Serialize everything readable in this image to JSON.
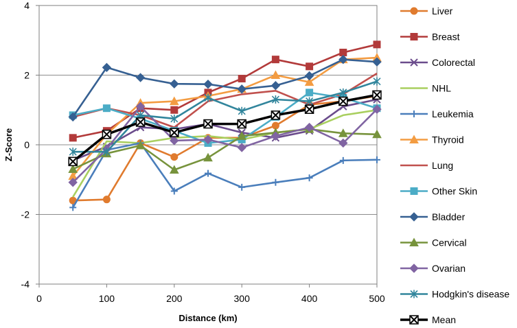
{
  "chart_data": {
    "type": "line",
    "title": "",
    "xlabel": "Distance (km)",
    "ylabel": "Z-Score",
    "xlim": [
      0,
      500
    ],
    "ylim": [
      -4,
      4
    ],
    "x_ticks": [
      0,
      100,
      200,
      300,
      400,
      500
    ],
    "y_ticks": [
      -4,
      -2,
      0,
      2,
      4
    ],
    "x": [
      50,
      100,
      150,
      200,
      250,
      300,
      350,
      400,
      450,
      500
    ],
    "grid": "horizontal",
    "legend_position": "right",
    "series": [
      {
        "name": "Liver",
        "color": "#E07B2E",
        "marker": "circle",
        "values": [
          -1.6,
          -1.57,
          0.05,
          -0.35,
          0.2,
          0.2,
          0.55,
          1.15,
          1.25,
          1.4
        ]
      },
      {
        "name": "Breast",
        "color": "#B23A3A",
        "marker": "square",
        "values": [
          0.2,
          0.4,
          1.05,
          1.0,
          1.5,
          1.9,
          2.45,
          2.25,
          2.65,
          2.88
        ]
      },
      {
        "name": "Colorectal",
        "color": "#6B4C8C",
        "marker": "x",
        "values": [
          -0.45,
          -0.05,
          0.5,
          0.45,
          0.6,
          0.35,
          0.2,
          0.4,
          1.1,
          1.3
        ]
      },
      {
        "name": "NHL",
        "color": "#A9CF5F",
        "marker": "none",
        "values": [
          -1.5,
          0.1,
          0.05,
          0.2,
          0.25,
          0.15,
          0.35,
          0.45,
          0.85,
          1.0
        ]
      },
      {
        "name": "Leukemia",
        "color": "#4A7EBB",
        "marker": "plus",
        "values": [
          -1.8,
          -0.15,
          0.05,
          -1.33,
          -0.82,
          -1.22,
          -1.08,
          -0.95,
          -0.45,
          -0.43
        ]
      },
      {
        "name": "Thyroid",
        "color": "#F39C42",
        "marker": "triangle",
        "values": [
          -0.9,
          0.3,
          1.2,
          1.25,
          1.4,
          1.6,
          2.0,
          1.8,
          2.45,
          2.5
        ]
      },
      {
        "name": "Lung",
        "color": "#C0504D",
        "marker": "none",
        "values": [
          0.8,
          1.05,
          0.85,
          0.5,
          1.25,
          1.45,
          1.55,
          1.15,
          1.45,
          2.05
        ]
      },
      {
        "name": "Other Skin",
        "color": "#4BACC6",
        "marker": "square",
        "values": [
          0.85,
          1.05,
          0.75,
          0.4,
          0.05,
          0.15,
          0.8,
          1.5,
          1.35,
          1.05
        ]
      },
      {
        "name": "Bladder",
        "color": "#366092",
        "marker": "diamond",
        "values": [
          0.8,
          2.22,
          1.93,
          1.75,
          1.74,
          1.6,
          1.7,
          1.98,
          2.45,
          2.38
        ]
      },
      {
        "name": "Cervical",
        "color": "#77933C",
        "marker": "triangle",
        "values": [
          -0.7,
          -0.25,
          -0.02,
          -0.72,
          -0.37,
          0.25,
          0.35,
          0.45,
          0.33,
          0.3
        ]
      },
      {
        "name": "Ovarian",
        "color": "#8064A2",
        "marker": "diamond",
        "values": [
          -1.08,
          -0.12,
          1.1,
          0.12,
          0.15,
          -0.08,
          0.25,
          0.5,
          0.05,
          1.02
        ]
      },
      {
        "name": "Hodgkin's disease",
        "color": "#31859C",
        "marker": "asterisk",
        "values": [
          -0.2,
          -0.2,
          0.85,
          0.75,
          1.35,
          0.97,
          1.3,
          1.25,
          1.5,
          1.82
        ]
      },
      {
        "name": "Mean",
        "color": "#000000",
        "marker": "xbox",
        "values": [
          -0.48,
          0.3,
          0.65,
          0.35,
          0.6,
          0.6,
          0.85,
          1.02,
          1.25,
          1.43
        ]
      }
    ]
  }
}
